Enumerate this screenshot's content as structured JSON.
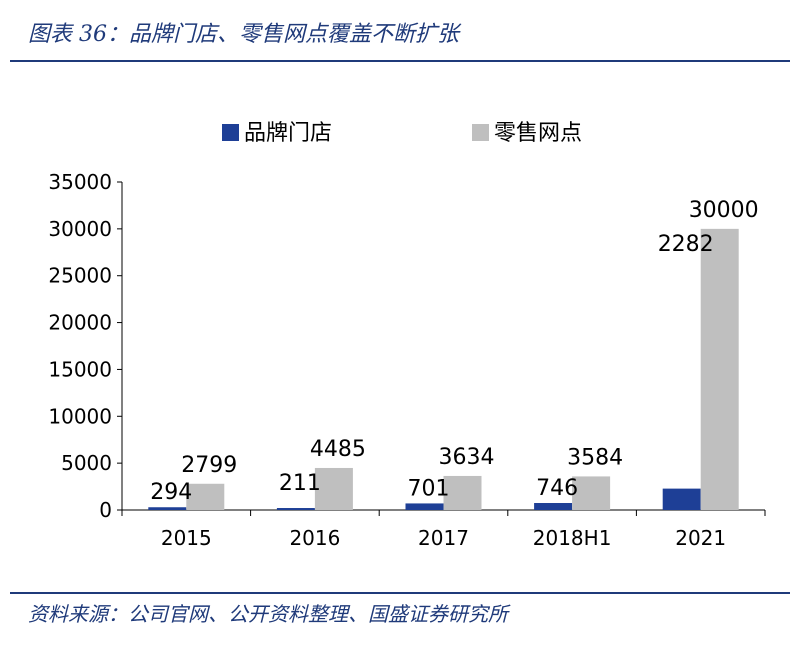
{
  "header": {
    "title": "图表 36：品牌门店、零售网点覆盖不断扩张"
  },
  "footer": {
    "source": "资料来源：公司官网、公开资料整理、国盛证券研究所"
  },
  "colors": {
    "brand": "#1f3a7a",
    "series1": "#1e3f96",
    "series2": "#bfbfbf"
  },
  "chart_data": {
    "type": "bar",
    "categories": [
      "2015",
      "2016",
      "2017",
      "2018H1",
      "2021"
    ],
    "series": [
      {
        "name": "品牌门店",
        "values": [
          294,
          211,
          701,
          746,
          2282
        ]
      },
      {
        "name": "零售网点",
        "values": [
          2799,
          4485,
          3634,
          3584,
          30000
        ]
      }
    ],
    "ylim": [
      0,
      35000
    ],
    "yticks": [
      "0",
      "5000",
      "10000",
      "15000",
      "20000",
      "25000",
      "30000",
      "35000"
    ],
    "legend": "top",
    "grid": false
  }
}
